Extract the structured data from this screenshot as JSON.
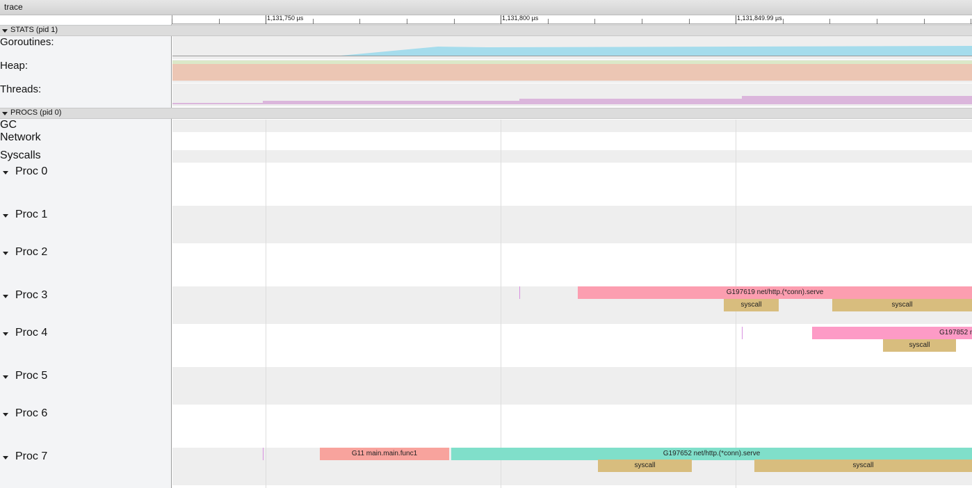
{
  "title": "trace",
  "ruler": {
    "labels": [
      "1,131,750 µs",
      "1,131,800 µs",
      "1,131,849.99 µs"
    ]
  },
  "sections": [
    {
      "label": "STATS (pid 1)",
      "rows": [
        "Goroutines:",
        "Heap:",
        "Threads:"
      ]
    },
    {
      "label": "PROCS (pid 0)",
      "rows": [
        "GC",
        "Network",
        "Syscalls",
        "Proc 0",
        "Proc 1",
        "Proc 2",
        "Proc 3",
        "Proc 4",
        "Proc 5",
        "Proc 6",
        "Proc 7"
      ]
    }
  ],
  "slices": [
    "G197619 net/http.(*conn).serve",
    "syscall",
    "syscall",
    "G197852 n",
    "syscall",
    "G11 main.main.func1",
    "G197652 net/http.(*conn).serve",
    "syscall",
    "syscall"
  ]
}
